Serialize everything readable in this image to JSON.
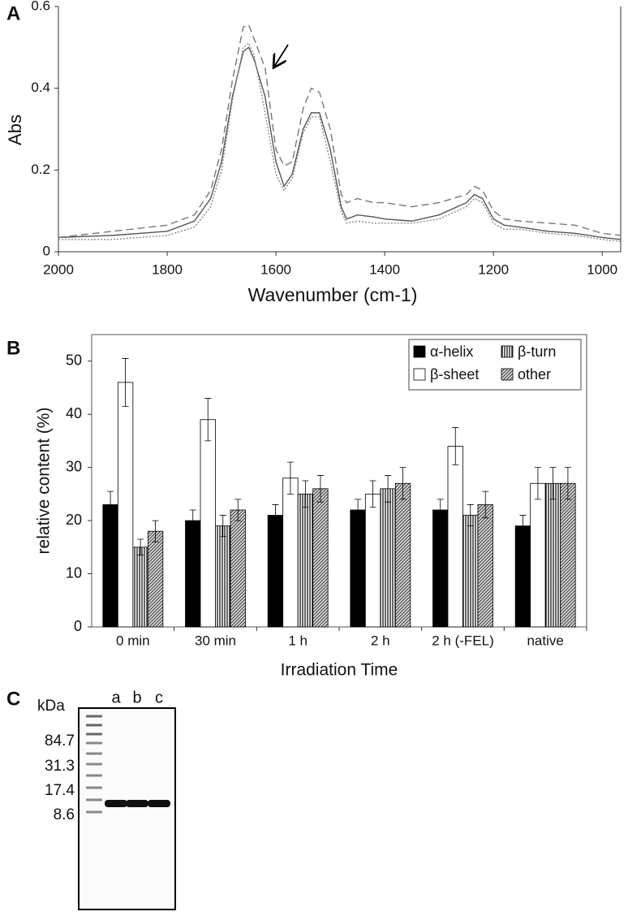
{
  "chart_data": [
    {
      "type": "line",
      "panel_label": "A",
      "ylabel": "Abs",
      "xlabel": "Wavenumber (cm-1)",
      "xlim": [
        2000,
        966
      ],
      "xticks": [
        2000,
        1800,
        1600,
        1400,
        1200,
        1000
      ],
      "ylim": [
        0,
        0.6
      ],
      "yticks": [
        0,
        0.2,
        0.4,
        0.6
      ],
      "x": [
        2000,
        1900,
        1800,
        1750,
        1720,
        1700,
        1680,
        1660,
        1650,
        1640,
        1620,
        1600,
        1585,
        1570,
        1550,
        1535,
        1520,
        1500,
        1480,
        1470,
        1450,
        1420,
        1400,
        1350,
        1300,
        1250,
        1235,
        1220,
        1200,
        1180,
        1150,
        1100,
        1050,
        1000,
        966
      ],
      "series": [
        {
          "color": "#555555",
          "style": "solid",
          "values": [
            0.035,
            0.04,
            0.05,
            0.075,
            0.13,
            0.22,
            0.38,
            0.49,
            0.5,
            0.47,
            0.38,
            0.22,
            0.16,
            0.19,
            0.3,
            0.34,
            0.34,
            0.25,
            0.11,
            0.08,
            0.09,
            0.085,
            0.08,
            0.075,
            0.09,
            0.12,
            0.14,
            0.13,
            0.08,
            0.065,
            0.06,
            0.05,
            0.045,
            0.035,
            0.03
          ]
        },
        {
          "color": "#777777",
          "style": "dashed",
          "values": [
            0.035,
            0.05,
            0.065,
            0.09,
            0.15,
            0.25,
            0.42,
            0.55,
            0.555,
            0.52,
            0.45,
            0.25,
            0.21,
            0.22,
            0.35,
            0.4,
            0.39,
            0.3,
            0.14,
            0.12,
            0.13,
            0.12,
            0.12,
            0.11,
            0.12,
            0.14,
            0.16,
            0.15,
            0.1,
            0.08,
            0.075,
            0.07,
            0.065,
            0.045,
            0.04
          ]
        },
        {
          "color": "#888888",
          "style": "dotted",
          "values": [
            0.03,
            0.03,
            0.04,
            0.06,
            0.11,
            0.2,
            0.37,
            0.5,
            0.51,
            0.48,
            0.34,
            0.19,
            0.15,
            0.18,
            0.29,
            0.33,
            0.33,
            0.22,
            0.1,
            0.07,
            0.075,
            0.07,
            0.07,
            0.07,
            0.08,
            0.11,
            0.13,
            0.12,
            0.07,
            0.055,
            0.055,
            0.045,
            0.04,
            0.03,
            0.025
          ]
        }
      ]
    },
    {
      "type": "bar",
      "panel_label": "B",
      "ylabel": "relative content (%)",
      "xlabel": "Irradiation Time",
      "categories": [
        "0 min",
        "30 min",
        "1 h",
        "2 h",
        "2 h  (-FEL)",
        "native"
      ],
      "ylim": [
        0,
        55
      ],
      "yticks": [
        0,
        10,
        20,
        30,
        40,
        50
      ],
      "legend": "upper right",
      "series": [
        {
          "name": "α-helix",
          "color": "#000000",
          "pattern": "none",
          "values": [
            23,
            20,
            21,
            22,
            22,
            19
          ],
          "errors": [
            2.5,
            2,
            2,
            2,
            2,
            2
          ]
        },
        {
          "name": "β-sheet",
          "color": "#ffffff",
          "pattern": "none",
          "values": [
            46,
            39,
            28,
            25,
            34,
            27
          ],
          "errors": [
            4.5,
            4,
            3,
            2.5,
            3.5,
            3
          ]
        },
        {
          "name": "β-turn",
          "color": "#ffffff",
          "pattern": "vertical",
          "values": [
            15,
            19,
            25,
            26,
            21,
            27
          ],
          "errors": [
            1.5,
            2,
            2.5,
            2.5,
            2,
            3
          ]
        },
        {
          "name": "other",
          "color": "#ffffff",
          "pattern": "diagonal",
          "values": [
            18,
            22,
            26,
            27,
            23,
            27
          ],
          "errors": [
            2,
            2,
            2.5,
            3,
            2.5,
            3
          ]
        }
      ]
    }
  ],
  "gel": {
    "panel_label": "C",
    "unit": "kDa",
    "lanes": [
      "a",
      "b",
      "c"
    ],
    "markers": [
      84.7,
      31.3,
      17.4,
      8.6
    ]
  }
}
